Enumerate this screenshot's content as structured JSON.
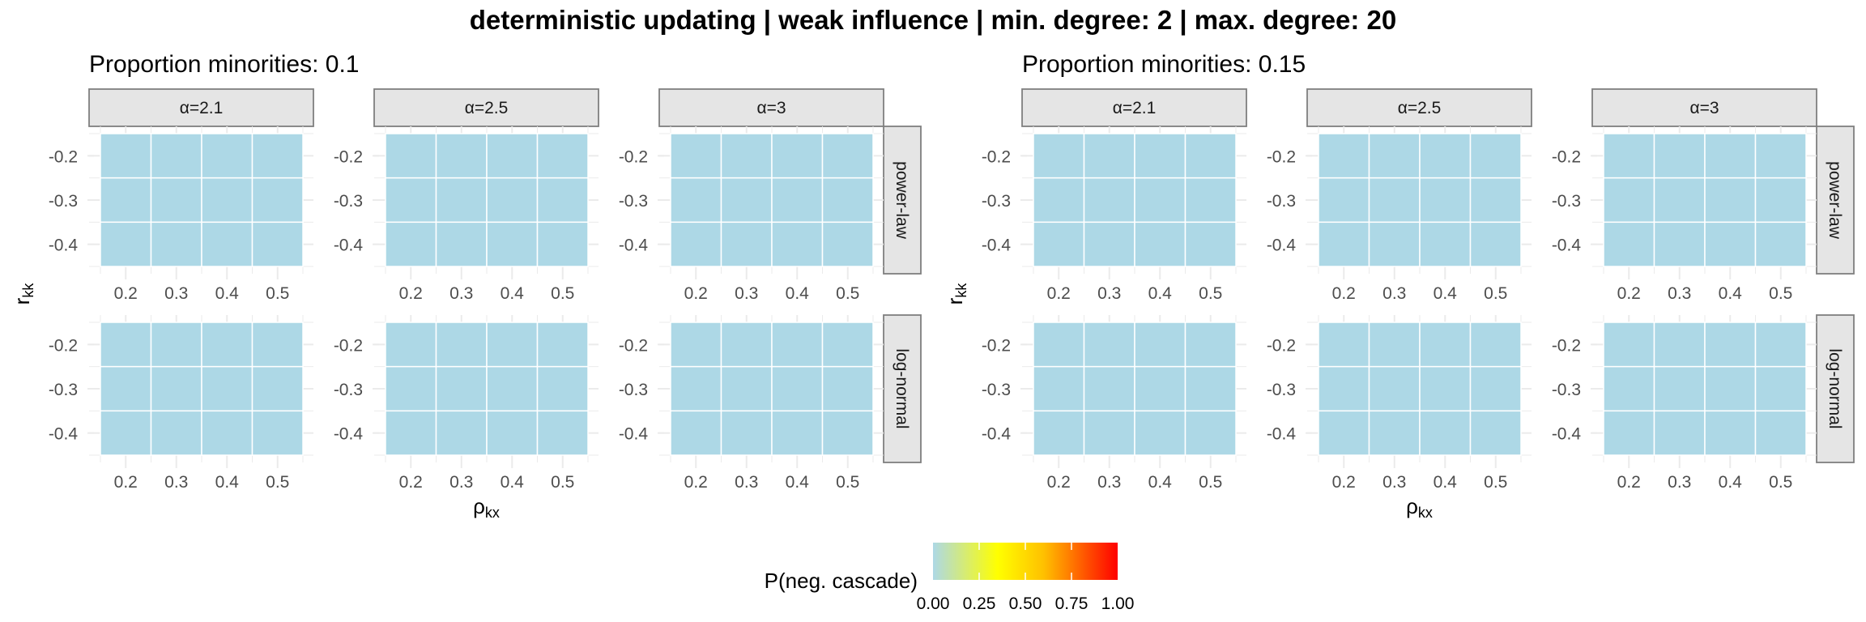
{
  "chart_data": {
    "type": "heatmap",
    "title": "deterministic updating | weak influence | min. degree: 2 | max. degree: 20",
    "xlabel": "ρ",
    "xlabel_subscript": "kx",
    "ylabel": "r",
    "ylabel_subscript": "kk",
    "x_ticks": [
      0.2,
      0.3,
      0.4,
      0.5
    ],
    "x_tick_labels": [
      "0.2",
      "0.3",
      "0.4",
      "0.5"
    ],
    "y_ticks": [
      -0.2,
      -0.3,
      -0.4
    ],
    "y_tick_labels": [
      "-0.2",
      "-0.3",
      "-0.4"
    ],
    "xlim": [
      0.15,
      0.55
    ],
    "ylim": [
      -0.45,
      -0.15
    ],
    "grid": true,
    "facet_columns": [
      "α=2.1",
      "α=2.5",
      "α=3"
    ],
    "facet_rows": [
      "power-law",
      "log-normal"
    ],
    "legend": {
      "title": "P(neg. cascade)",
      "placement": "bottom",
      "range": [
        0,
        1
      ],
      "tick_labels": [
        "0.00",
        "0.25",
        "0.50",
        "0.75",
        "1.00"
      ],
      "tick_values": [
        0,
        0.25,
        0.5,
        0.75,
        1
      ],
      "gradient": [
        {
          "value": 0.0,
          "color": "#add8e6"
        },
        {
          "value": 0.35,
          "color": "#ffff00"
        },
        {
          "value": 0.6,
          "color": "#ffc000"
        },
        {
          "value": 1.0,
          "color": "#ff0000"
        }
      ]
    },
    "groups": [
      {
        "subtitle": "Proportion minorities: 0.1",
        "panels": [
          {
            "row": "power-law",
            "col": "α=2.1",
            "x": [
              0.2,
              0.3,
              0.4,
              0.5
            ],
            "y": [
              -0.2,
              -0.3,
              -0.4
            ],
            "values": [
              [
                0,
                0,
                0,
                0
              ],
              [
                0,
                0,
                0,
                0
              ],
              [
                0,
                0,
                0,
                0
              ]
            ]
          },
          {
            "row": "power-law",
            "col": "α=2.5",
            "x": [
              0.2,
              0.3,
              0.4,
              0.5
            ],
            "y": [
              -0.2,
              -0.3,
              -0.4
            ],
            "values": [
              [
                0,
                0,
                0,
                0
              ],
              [
                0,
                0,
                0,
                0
              ],
              [
                0,
                0,
                0,
                0
              ]
            ]
          },
          {
            "row": "power-law",
            "col": "α=3",
            "x": [
              0.2,
              0.3,
              0.4,
              0.5
            ],
            "y": [
              -0.2,
              -0.3,
              -0.4
            ],
            "values": [
              [
                0,
                0,
                0,
                0
              ],
              [
                0,
                0,
                0,
                0
              ],
              [
                0,
                0,
                0,
                0
              ]
            ]
          },
          {
            "row": "log-normal",
            "col": "α=2.1",
            "x": [
              0.2,
              0.3,
              0.4,
              0.5
            ],
            "y": [
              -0.2,
              -0.3,
              -0.4
            ],
            "values": [
              [
                0,
                0,
                0,
                0
              ],
              [
                0,
                0,
                0,
                0
              ],
              [
                0,
                0,
                0,
                0
              ]
            ]
          },
          {
            "row": "log-normal",
            "col": "α=2.5",
            "x": [
              0.2,
              0.3,
              0.4,
              0.5
            ],
            "y": [
              -0.2,
              -0.3,
              -0.4
            ],
            "values": [
              [
                0,
                0,
                0,
                0
              ],
              [
                0,
                0,
                0,
                0
              ],
              [
                0,
                0,
                0,
                0
              ]
            ]
          },
          {
            "row": "log-normal",
            "col": "α=3",
            "x": [
              0.2,
              0.3,
              0.4,
              0.5
            ],
            "y": [
              -0.2,
              -0.3,
              -0.4
            ],
            "values": [
              [
                0,
                0,
                0,
                0
              ],
              [
                0,
                0,
                0,
                0
              ],
              [
                0,
                0,
                0,
                0
              ]
            ]
          }
        ]
      },
      {
        "subtitle": "Proportion minorities: 0.15",
        "panels": [
          {
            "row": "power-law",
            "col": "α=2.1",
            "x": [
              0.2,
              0.3,
              0.4,
              0.5
            ],
            "y": [
              -0.2,
              -0.3,
              -0.4
            ],
            "values": [
              [
                0,
                0,
                0,
                0
              ],
              [
                0,
                0,
                0,
                0
              ],
              [
                0,
                0,
                0,
                0
              ]
            ]
          },
          {
            "row": "power-law",
            "col": "α=2.5",
            "x": [
              0.2,
              0.3,
              0.4,
              0.5
            ],
            "y": [
              -0.2,
              -0.3,
              -0.4
            ],
            "values": [
              [
                0,
                0,
                0,
                0
              ],
              [
                0,
                0,
                0,
                0
              ],
              [
                0,
                0,
                0,
                0
              ]
            ]
          },
          {
            "row": "power-law",
            "col": "α=3",
            "x": [
              0.2,
              0.3,
              0.4,
              0.5
            ],
            "y": [
              -0.2,
              -0.3,
              -0.4
            ],
            "values": [
              [
                0,
                0,
                0,
                0
              ],
              [
                0,
                0,
                0,
                0
              ],
              [
                0,
                0,
                0,
                0
              ]
            ]
          },
          {
            "row": "log-normal",
            "col": "α=2.1",
            "x": [
              0.2,
              0.3,
              0.4,
              0.5
            ],
            "y": [
              -0.2,
              -0.3,
              -0.4
            ],
            "values": [
              [
                0,
                0,
                0,
                0
              ],
              [
                0,
                0,
                0,
                0
              ],
              [
                0,
                0,
                0,
                0
              ]
            ]
          },
          {
            "row": "log-normal",
            "col": "α=2.5",
            "x": [
              0.2,
              0.3,
              0.4,
              0.5
            ],
            "y": [
              -0.2,
              -0.3,
              -0.4
            ],
            "values": [
              [
                0,
                0,
                0,
                0
              ],
              [
                0,
                0,
                0,
                0
              ],
              [
                0,
                0,
                0,
                0
              ]
            ]
          },
          {
            "row": "log-normal",
            "col": "α=3",
            "x": [
              0.2,
              0.3,
              0.4,
              0.5
            ],
            "y": [
              -0.2,
              -0.3,
              -0.4
            ],
            "values": [
              [
                0,
                0,
                0,
                0
              ],
              [
                0,
                0,
                0,
                0
              ],
              [
                0,
                0,
                0,
                0
              ]
            ]
          }
        ]
      }
    ]
  }
}
